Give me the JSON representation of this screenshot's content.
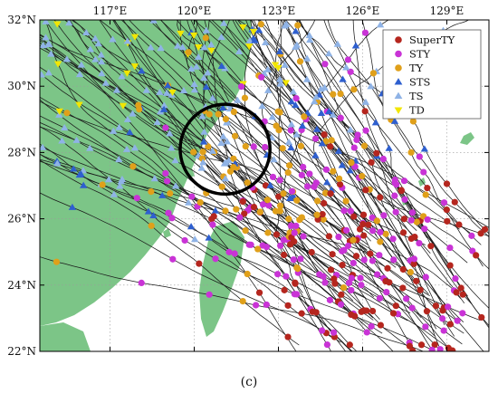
{
  "figure_label": "(c)",
  "map": {
    "x_ticks": [
      {
        "lon": 117,
        "label": "117°E"
      },
      {
        "lon": 120,
        "label": "120°E"
      },
      {
        "lon": 123,
        "label": "123°E"
      },
      {
        "lon": 126,
        "label": "126°E"
      },
      {
        "lon": 129,
        "label": "129°E"
      }
    ],
    "y_ticks": [
      {
        "lat": 32,
        "label": "32°N"
      },
      {
        "lat": 30,
        "label": "30°N"
      },
      {
        "lat": 28,
        "label": "28°N"
      },
      {
        "lat": 26,
        "label": "26°N"
      },
      {
        "lat": 24,
        "label": "24°N"
      },
      {
        "lat": 22,
        "label": "22°N"
      }
    ],
    "lon_range": [
      114.5,
      130.5
    ],
    "lat_range": [
      22,
      32
    ],
    "grid": true,
    "land_color": "#7cc587",
    "sea_color": "#ffffff",
    "circle": {
      "center_lon": 121.1,
      "center_lat": 28.1,
      "radius_deg": 1.6,
      "color": "#000000"
    }
  },
  "legend": {
    "placement": "top-right",
    "items": [
      {
        "label": "SuperTY",
        "color": "#b5261e",
        "marker": "circle"
      },
      {
        "label": "STY",
        "color": "#c933d6",
        "marker": "circle"
      },
      {
        "label": "TY",
        "color": "#e0a01a",
        "marker": "circle"
      },
      {
        "label": "STS",
        "color": "#2e5fcf",
        "marker": "triangle-up"
      },
      {
        "label": "TS",
        "color": "#8fb3e6",
        "marker": "triangle-up"
      },
      {
        "label": "TD",
        "color": "#f2e600",
        "marker": "triangle-down"
      }
    ]
  }
}
